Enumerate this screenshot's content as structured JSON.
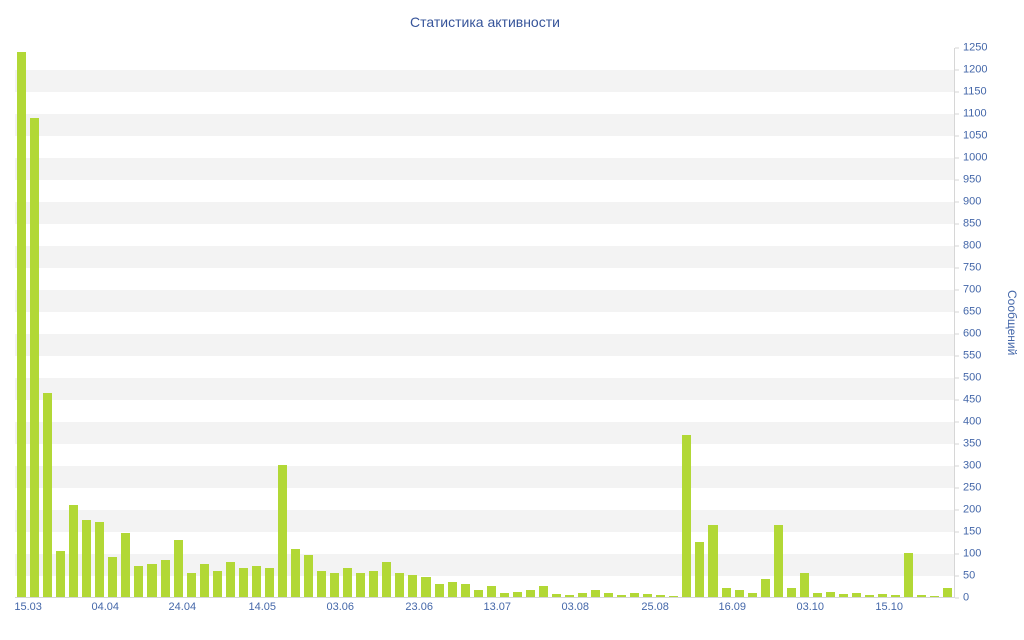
{
  "colors": {
    "bar": "#b2d836",
    "title_text": "#36549a",
    "tick_text": "#4467a9",
    "axis_line": "#d6d6d6",
    "stripe": "#f3f3f3"
  },
  "chart_data": {
    "type": "bar",
    "title": "Статистика активности",
    "xlabel": "",
    "ylabel": "Сообщений",
    "ylim": [
      0,
      1250
    ],
    "y_tick_step": 50,
    "grid": "horizontal-stripes",
    "legend": "none",
    "y_ticks": [
      0,
      50,
      100,
      150,
      200,
      250,
      300,
      350,
      400,
      450,
      500,
      550,
      600,
      650,
      700,
      750,
      800,
      850,
      900,
      950,
      1000,
      1050,
      1100,
      1150,
      1200,
      1250
    ],
    "x_ticks": [
      {
        "label": "15.03",
        "pos": 0.014
      },
      {
        "label": "04.04",
        "pos": 0.096
      },
      {
        "label": "24.04",
        "pos": 0.178
      },
      {
        "label": "14.05",
        "pos": 0.263
      },
      {
        "label": "03.06",
        "pos": 0.346
      },
      {
        "label": "23.06",
        "pos": 0.43
      },
      {
        "label": "13.07",
        "pos": 0.513
      },
      {
        "label": "03.08",
        "pos": 0.596
      },
      {
        "label": "25.08",
        "pos": 0.681
      },
      {
        "label": "16.09",
        "pos": 0.763
      },
      {
        "label": "03.10",
        "pos": 0.846
      },
      {
        "label": "15.10",
        "pos": 0.93
      }
    ],
    "values": [
      1240,
      1090,
      465,
      105,
      210,
      175,
      170,
      90,
      145,
      70,
      75,
      85,
      130,
      55,
      75,
      60,
      80,
      65,
      70,
      65,
      300,
      110,
      95,
      60,
      55,
      65,
      55,
      60,
      80,
      55,
      50,
      45,
      30,
      35,
      30,
      15,
      25,
      10,
      12,
      15,
      25,
      8,
      5,
      10,
      15,
      10,
      5,
      10,
      8,
      5,
      3,
      370,
      125,
      165,
      20,
      15,
      10,
      40,
      165,
      20,
      55,
      10,
      12,
      8,
      10,
      5,
      8,
      5,
      100,
      5,
      3,
      20
    ]
  }
}
